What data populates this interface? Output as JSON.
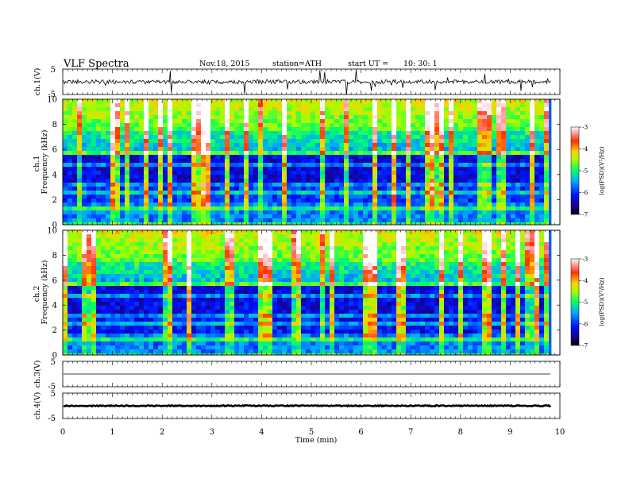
{
  "header": {
    "title": "VLF  Spectra",
    "date": "Nov.18, 2015",
    "station": "station=ATH",
    "start_label": "start  UT  =",
    "start_time": "10: 30: 1"
  },
  "chart_data": [
    {
      "type": "line",
      "panel": "ch1-waveform",
      "ylabel": "ch.1(V)",
      "ylim": [
        -5,
        5
      ],
      "y_ticks": [
        "5",
        "-5"
      ],
      "baseline": 0,
      "noise_amplitude": 0.8,
      "color": "#000000"
    },
    {
      "type": "heatmap",
      "panel": "ch1-spectrogram",
      "ylabel": "Frequency (kHz)",
      "channel_label": "ch.1",
      "ylim": [
        0,
        10
      ],
      "y_ticks": [
        "0",
        "2",
        "4",
        "6",
        "8",
        "10"
      ],
      "colorbar": {
        "label": "log(PSD)(V²/Hz)",
        "range": [
          -7,
          -3
        ],
        "ticks": [
          "-3",
          "-4",
          "-5",
          "-6",
          "-7"
        ]
      }
    },
    {
      "type": "heatmap",
      "panel": "ch2-spectrogram",
      "ylabel": "Frequency (kHz)",
      "channel_label": "ch.2",
      "ylim": [
        0,
        10
      ],
      "y_ticks": [
        "0",
        "2",
        "4",
        "6",
        "8",
        "10"
      ],
      "colorbar": {
        "label": "log(PSD)(V²/Hz)",
        "range": [
          -7,
          -3
        ],
        "ticks": [
          "-3",
          "-4",
          "-5",
          "-6",
          "-7"
        ]
      }
    },
    {
      "type": "line",
      "panel": "ch3-waveform",
      "ylabel": "ch.3(V)",
      "ylim": [
        -5,
        5
      ],
      "y_ticks": [
        "5",
        "-5"
      ],
      "baseline": 0,
      "noise_amplitude": 0,
      "color": "#000000"
    },
    {
      "type": "line",
      "panel": "ch4-waveform",
      "ylabel": "ch.4(V)",
      "ylim": [
        -5,
        5
      ],
      "y_ticks": [
        "5",
        "-5"
      ],
      "baseline": 0,
      "noise_amplitude": 0.2,
      "color": "#000000"
    }
  ],
  "x_axis": {
    "label": "Time  (min)",
    "xlim": [
      0,
      10
    ],
    "data_end": 9.83,
    "tick_labels": [
      "0",
      "1",
      "2",
      "3",
      "4",
      "5",
      "6",
      "7",
      "8",
      "9",
      "10"
    ]
  }
}
